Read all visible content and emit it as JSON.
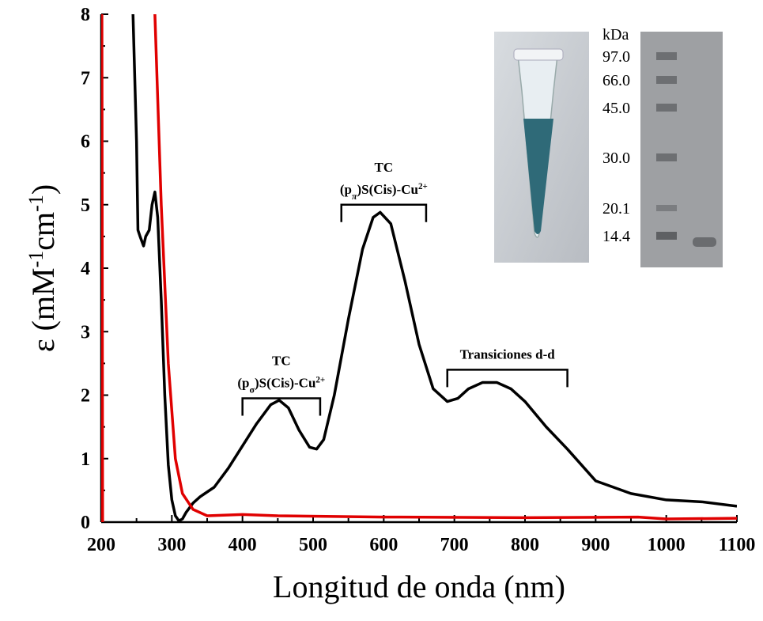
{
  "chart_data": {
    "type": "line",
    "x_label": "Longitud de onda (nm)",
    "y_label": [
      {
        "text": "ε (mM"
      },
      {
        "text": "-1",
        "sup": true
      },
      {
        "text": "cm"
      },
      {
        "text": "-1",
        "sup": true
      },
      {
        "text": ")"
      }
    ],
    "xlim": [
      200,
      1100
    ],
    "ylim": [
      0,
      8
    ],
    "xticks": [
      200,
      300,
      400,
      500,
      600,
      700,
      800,
      900,
      1000,
      1100
    ],
    "yticks": [
      0,
      1,
      2,
      3,
      4,
      5,
      6,
      7,
      8
    ],
    "series": [
      {
        "color": "#000000",
        "x": [
          245,
          250,
          252,
          255,
          260,
          263,
          268,
          272,
          276,
          280,
          285,
          290,
          295,
          300,
          305,
          310,
          315,
          320,
          330,
          340,
          360,
          380,
          400,
          420,
          440,
          452,
          465,
          480,
          495,
          505,
          515,
          530,
          550,
          570,
          585,
          595,
          610,
          630,
          650,
          670,
          690,
          705,
          720,
          740,
          760,
          780,
          800,
          830,
          860,
          900,
          950,
          1000,
          1050,
          1100
        ],
        "values": [
          8,
          6.0,
          4.6,
          4.5,
          4.35,
          4.5,
          4.6,
          5.0,
          5.2,
          4.8,
          3.5,
          2.0,
          0.9,
          0.35,
          0.1,
          0.02,
          0.05,
          0.15,
          0.3,
          0.4,
          0.55,
          0.85,
          1.2,
          1.55,
          1.85,
          1.92,
          1.8,
          1.45,
          1.18,
          1.15,
          1.3,
          2.0,
          3.2,
          4.3,
          4.8,
          4.88,
          4.7,
          3.8,
          2.8,
          2.1,
          1.9,
          1.95,
          2.1,
          2.2,
          2.2,
          2.1,
          1.9,
          1.5,
          1.15,
          0.65,
          0.45,
          0.35,
          0.32,
          0.25
        ]
      },
      {
        "color": "#e00000",
        "x": [
          201,
          202,
          240,
          276,
          285,
          295,
          305,
          315,
          330,
          350,
          400,
          450,
          600,
          800,
          960,
          1000,
          1100
        ],
        "values": [
          8,
          0,
          null,
          8,
          5,
          2.5,
          1.0,
          0.45,
          0.2,
          0.1,
          0.12,
          0.1,
          0.08,
          0.07,
          0.08,
          0.05,
          0.06
        ]
      }
    ],
    "annotations": [
      {
        "lines": [
          [
            {
              "text": "TC"
            }
          ],
          [
            {
              "text": "(p"
            },
            {
              "text": "σ",
              "sub": true
            },
            {
              "text": ")S(Cis)-Cu"
            },
            {
              "text": "2+",
              "sup": true
            }
          ]
        ],
        "x_range": [
          400,
          510
        ],
        "y": 1.95
      },
      {
        "lines": [
          [
            {
              "text": "TC"
            }
          ],
          [
            {
              "text": "(p"
            },
            {
              "text": "π",
              "sub": true,
              "italic": true
            },
            {
              "text": ")S(Cis)-Cu"
            },
            {
              "text": "2+",
              "sup": true
            }
          ]
        ],
        "x_range": [
          540,
          660
        ],
        "y": 5.0
      },
      {
        "lines": [
          [
            {
              "text": "Transiciones d-d"
            }
          ]
        ],
        "x_range": [
          690,
          860
        ],
        "y": 2.4
      }
    ],
    "inset": {
      "unit": "kDa",
      "markers": [
        "97.0",
        "66.0",
        "45.0",
        "30.0",
        "20.1",
        "14.4"
      ]
    }
  }
}
